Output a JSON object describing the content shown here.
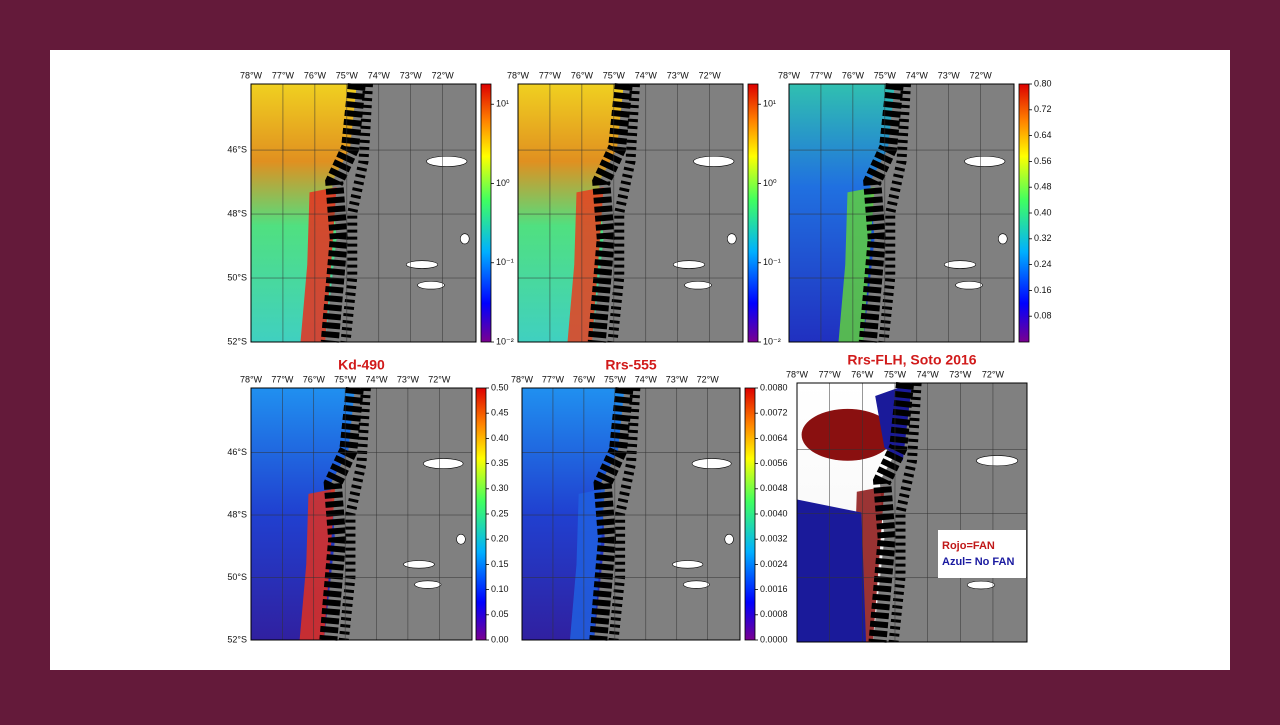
{
  "lon_labels": [
    "78°W",
    "77°W",
    "76°W",
    "75°W",
    "74°W",
    "73°W",
    "72°W"
  ],
  "lat_labels": [
    "46°S",
    "48°S",
    "50°S",
    "52°S"
  ],
  "panels": [
    {
      "colorbar": {
        "scale": "log",
        "lim": [
          0.01,
          18
        ],
        "ticks": [
          {
            "value": 10,
            "label": "10¹"
          },
          {
            "value": 1,
            "label": "10⁰"
          },
          {
            "value": 0.1,
            "label": "10⁻¹"
          },
          {
            "value": 0.01,
            "label": "10⁻²"
          }
        ]
      }
    },
    {
      "colorbar": {
        "scale": "log",
        "lim": [
          0.01,
          18
        ],
        "ticks": [
          {
            "value": 10,
            "label": "10¹"
          },
          {
            "value": 1,
            "label": "10⁰"
          },
          {
            "value": 0.1,
            "label": "10⁻¹"
          },
          {
            "value": 0.01,
            "label": "10⁻²"
          }
        ]
      }
    },
    {
      "colorbar": {
        "scale": "linear",
        "lim": [
          0,
          0.8
        ],
        "ticks": [
          {
            "value": 0.8,
            "label": "0.80"
          },
          {
            "value": 0.72,
            "label": "0.72"
          },
          {
            "value": 0.64,
            "label": "0.64"
          },
          {
            "value": 0.56,
            "label": "0.56"
          },
          {
            "value": 0.48,
            "label": "0.48"
          },
          {
            "value": 0.4,
            "label": "0.40"
          },
          {
            "value": 0.32,
            "label": "0.32"
          },
          {
            "value": 0.24,
            "label": "0.24"
          },
          {
            "value": 0.16,
            "label": "0.16"
          },
          {
            "value": 0.08,
            "label": "0.08"
          }
        ]
      }
    },
    {
      "title": "Kd-490",
      "colorbar": {
        "scale": "linear",
        "lim": [
          0,
          0.5
        ],
        "ticks": [
          {
            "value": 0.5,
            "label": "0.50"
          },
          {
            "value": 0.45,
            "label": "0.45"
          },
          {
            "value": 0.4,
            "label": "0.40"
          },
          {
            "value": 0.35,
            "label": "0.35"
          },
          {
            "value": 0.3,
            "label": "0.30"
          },
          {
            "value": 0.25,
            "label": "0.25"
          },
          {
            "value": 0.2,
            "label": "0.20"
          },
          {
            "value": 0.15,
            "label": "0.15"
          },
          {
            "value": 0.1,
            "label": "0.10"
          },
          {
            "value": 0.05,
            "label": "0.05"
          },
          {
            "value": 0,
            "label": "0.00"
          }
        ]
      }
    },
    {
      "title": "Rrs-555",
      "colorbar": {
        "scale": "linear",
        "lim": [
          0,
          0.008
        ],
        "ticks": [
          {
            "value": 0.008,
            "label": "0.0080"
          },
          {
            "value": 0.0072,
            "label": "0.0072"
          },
          {
            "value": 0.0064,
            "label": "0.0064"
          },
          {
            "value": 0.0056,
            "label": "0.0056"
          },
          {
            "value": 0.0048,
            "label": "0.0048"
          },
          {
            "value": 0.004,
            "label": "0.0040"
          },
          {
            "value": 0.0032,
            "label": "0.0032"
          },
          {
            "value": 0.0024,
            "label": "0.0024"
          },
          {
            "value": 0.0016,
            "label": "0.0016"
          },
          {
            "value": 0.0008,
            "label": "0.0008"
          },
          {
            "value": 0,
            "label": "0.0000"
          }
        ]
      }
    },
    {
      "title": "Rrs-FLH, Soto 2016",
      "legend": [
        "Rojo=FAN",
        "Azul= No FAN"
      ]
    }
  ]
}
